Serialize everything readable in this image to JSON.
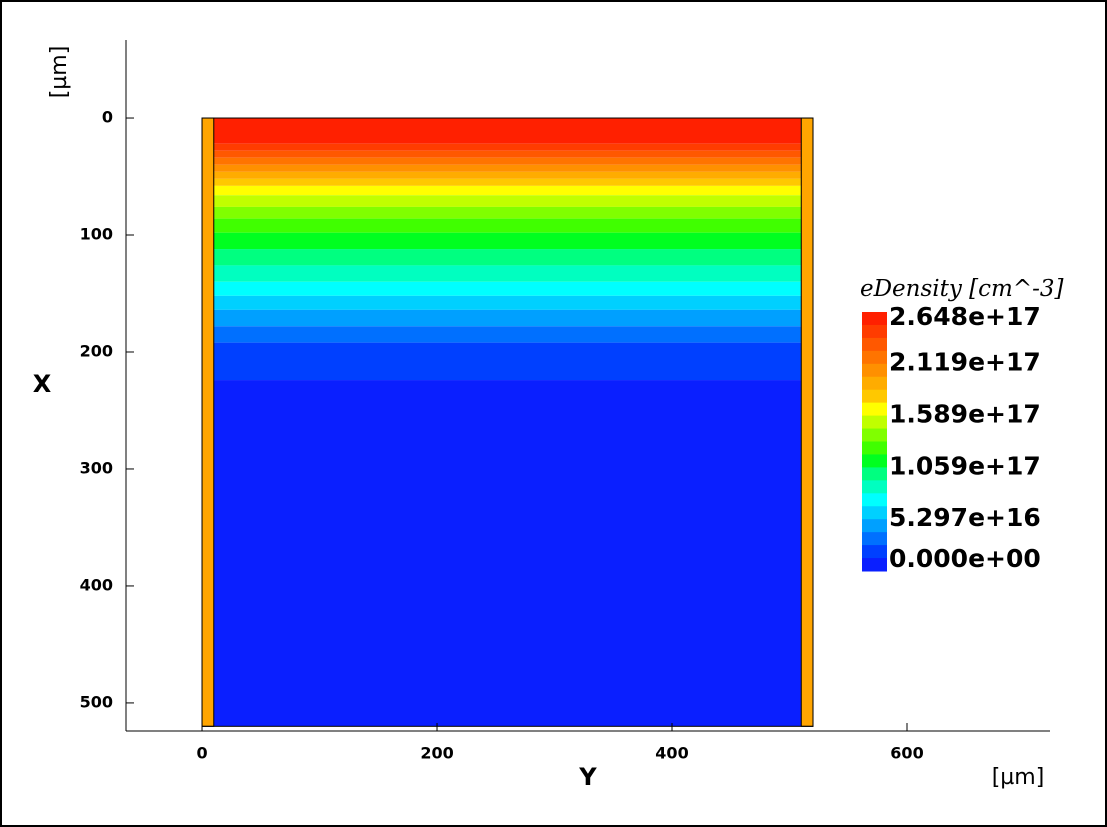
{
  "chart_data": {
    "type": "contour",
    "x_label": "Y",
    "y_label": "X",
    "x_unit": "[µm]",
    "y_unit": "[µm]",
    "xlim": [
      -64.7,
      721.7
    ],
    "xticks": [
      0,
      200,
      400,
      600
    ],
    "ylim": [
      -66.7,
      524
    ],
    "yticks": [
      0,
      100,
      200,
      300,
      400,
      500
    ],
    "y_inverted": true,
    "device_y": [
      0,
      520
    ],
    "device_x": [
      0,
      520
    ],
    "contacts": [
      [
        0,
        10
      ],
      [
        510,
        520
      ]
    ],
    "contact_color": "#ffa500",
    "band_edges": [
      0,
      22,
      28,
      34,
      40,
      46,
      52,
      58,
      66,
      76,
      86,
      98,
      112,
      126,
      140,
      152,
      164,
      178,
      192,
      224,
      520
    ],
    "band_colors": [
      "#ff2000",
      "#ff3c00",
      "#ff5800",
      "#ff7400",
      "#ff9000",
      "#ffac00",
      "#ffc800",
      "#ffff00",
      "#c0ff00",
      "#80ff00",
      "#40ff00",
      "#00ff20",
      "#00ff80",
      "#00ffc0",
      "#00ffff",
      "#00d0ff",
      "#00a0ff",
      "#0070ff",
      "#0040ff",
      "#0a1fff"
    ],
    "colorbar": {
      "title": "eDensity [cm^-3]",
      "clim": [
        0,
        2.648e+17
      ],
      "ticks": [
        {
          "value": 2.648e+17,
          "label": "2.648e+17"
        },
        {
          "value": 2.119e+17,
          "label": "2.119e+17"
        },
        {
          "value": 1.589e+17,
          "label": "1.589e+17"
        },
        {
          "value": 1.059e+17,
          "label": "1.059e+17"
        },
        {
          "value": 5.297e+16,
          "label": "5.297e+16"
        },
        {
          "value": 0,
          "label": "0.000e+00"
        }
      ]
    }
  }
}
